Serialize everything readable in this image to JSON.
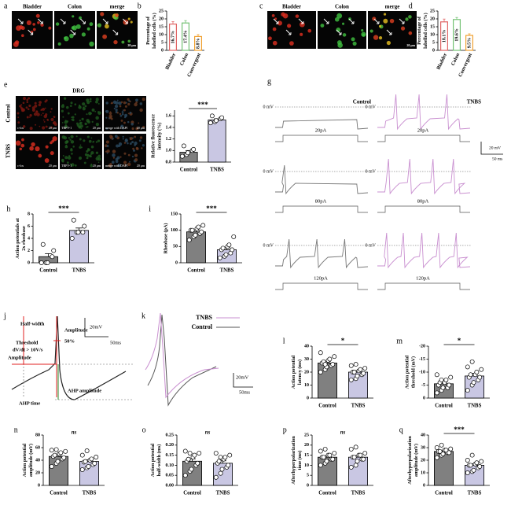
{
  "chart_data": [
    {
      "type": "bar",
      "panel": "b",
      "ylabel": [
        "Percentage of",
        "labelled cells (%)"
      ],
      "categories": [
        "Bladder",
        "Colon",
        "Convergent"
      ],
      "values": [
        16.7,
        17.4,
        8.8
      ],
      "value_labels": [
        "16.7%",
        "17.4%",
        "8.8%"
      ],
      "errors": [
        1.5,
        1.5,
        1.2
      ],
      "colors": [
        "#e06464",
        "#74c274",
        "#f0a030"
      ],
      "style": "outline",
      "ylim": [
        0,
        25
      ],
      "yticks": [
        0,
        5,
        10,
        15,
        20,
        25
      ]
    },
    {
      "type": "bar",
      "panel": "d",
      "ylabel": [
        "Percentage of",
        "labelled cells (%)"
      ],
      "categories": [
        "Bladder",
        "Colon",
        "Convergent"
      ],
      "values": [
        18.1,
        19.6,
        9.5
      ],
      "value_labels": [
        "18.1%",
        "19.6%",
        "9.5%"
      ],
      "errors": [
        1.8,
        1.3,
        1.0
      ],
      "colors": [
        "#e06464",
        "#74c274",
        "#f0a030"
      ],
      "style": "outline",
      "ylim": [
        0,
        25
      ],
      "yticks": [
        0,
        5,
        10,
        15,
        20,
        25
      ]
    },
    {
      "type": "bar",
      "panel": "f",
      "ylabel": [
        "Relative fluorescence",
        "intensity (%)"
      ],
      "categories": [
        "Control",
        "TNBS"
      ],
      "values": [
        0.97,
        1.53
      ],
      "errors": [
        0.03,
        0.02
      ],
      "points": [
        [
          0.9,
          0.93,
          0.96,
          1.0,
          1.02,
          1.08
        ],
        [
          1.48,
          1.5,
          1.52,
          1.55,
          1.57,
          1.6
        ]
      ],
      "colors": [
        "#808080",
        "#c9c7e3"
      ],
      "significance": "***",
      "ylim": [
        0.8,
        1.7
      ],
      "yticks": [
        {
          "value": 0.8,
          "label": "0.8"
        },
        {
          "value": 1.0,
          "label": "1.0"
        },
        {
          "value": 1.2,
          "label": "1.2"
        },
        {
          "value": 1.4,
          "label": "1.4"
        },
        {
          "value": 1.6,
          "label": "1.6"
        }
      ]
    },
    {
      "type": "bar",
      "panel": "h",
      "ylabel": [
        "Action potentials at",
        "2x rheobase"
      ],
      "categories": [
        "Control",
        "TNBS"
      ],
      "values": [
        1.0,
        5.3
      ],
      "errors": [
        0.5,
        0.4
      ],
      "points": [
        [
          0,
          0,
          0,
          1,
          2,
          3
        ],
        [
          4,
          5,
          5,
          5,
          6,
          7
        ]
      ],
      "colors": [
        "#808080",
        "#c9c7e3"
      ],
      "significance": "***",
      "ylim": [
        0,
        8
      ],
      "yticks": [
        0,
        2,
        4,
        6,
        8
      ]
    },
    {
      "type": "bar",
      "panel": "i",
      "ylabel": [
        "Rheobase (pA)"
      ],
      "categories": [
        "Control",
        "TNBS"
      ],
      "values": [
        95,
        40
      ],
      "errors": [
        5,
        6
      ],
      "points": [
        [
          70,
          80,
          85,
          90,
          95,
          100,
          100,
          105,
          110,
          115
        ],
        [
          15,
          20,
          25,
          30,
          40,
          40,
          45,
          50,
          55,
          80
        ]
      ],
      "colors": [
        "#808080",
        "#c9c7e3"
      ],
      "significance": "***",
      "ylim": [
        0,
        150
      ],
      "yticks": [
        0,
        50,
        100,
        150
      ]
    },
    {
      "type": "bar",
      "panel": "l",
      "ylabel": [
        "Action potential",
        "latency (ms)"
      ],
      "categories": [
        "Control",
        "TNBS"
      ],
      "values": [
        27,
        20
      ],
      "errors": [
        1.3,
        1.1
      ],
      "points": [
        [
          20,
          22,
          24,
          25,
          26,
          27,
          28,
          29,
          30,
          32,
          35,
          26
        ],
        [
          14,
          15,
          17,
          18,
          19,
          20,
          20,
          21,
          22,
          23,
          25,
          26
        ]
      ],
      "colors": [
        "#808080",
        "#c9c7e3"
      ],
      "significance": "*",
      "ylim": [
        0,
        40
      ],
      "yticks": [
        0,
        10,
        20,
        30,
        40
      ]
    },
    {
      "type": "bar",
      "panel": "m",
      "ylabel": [
        "Action potential",
        "threshold (mV)"
      ],
      "categories": [
        "Control",
        "TNBS"
      ],
      "values": [
        -5.5,
        -8.5
      ],
      "errors": [
        0.6,
        1.0
      ],
      "points": [
        [
          -2,
          -3,
          -4,
          -4,
          -5,
          -5,
          -6,
          -6,
          -7,
          -8,
          -9,
          -7
        ],
        [
          -3,
          -5,
          -6,
          -7,
          -8,
          -8,
          -9,
          -9,
          -10,
          -11,
          -12,
          -14
        ]
      ],
      "colors": [
        "#808080",
        "#c9c7e3"
      ],
      "significance": "*",
      "ylim": [
        0,
        -20
      ],
      "yticks": [
        0,
        -5,
        -10,
        -15,
        -20
      ]
    },
    {
      "type": "bar",
      "panel": "n",
      "ylabel": [
        "Action potential",
        "amplitude (mV)"
      ],
      "categories": [
        "Control",
        "TNBS"
      ],
      "values": [
        46,
        38
      ],
      "errors": [
        2.5,
        2.6
      ],
      "points": [
        [
          30,
          35,
          38,
          42,
          44,
          46,
          48,
          50,
          52,
          54,
          56,
          57
        ],
        [
          25,
          28,
          30,
          33,
          35,
          37,
          38,
          40,
          42,
          45,
          48,
          55
        ]
      ],
      "colors": [
        "#808080",
        "#c9c7e3"
      ],
      "significance": "ns",
      "ylim": [
        0,
        80
      ],
      "yticks": [
        0,
        20,
        40,
        60,
        80
      ]
    },
    {
      "type": "bar",
      "panel": "o",
      "ylabel": [
        "Action potential",
        "half-width (ms)"
      ],
      "categories": [
        "Control",
        "TNBS"
      ],
      "values": [
        0.12,
        0.11
      ],
      "errors": [
        0.012,
        0.012
      ],
      "points": [
        [
          0.05,
          0.07,
          0.08,
          0.1,
          0.11,
          0.12,
          0.13,
          0.14,
          0.15,
          0.16,
          0.17,
          0.16
        ],
        [
          0.04,
          0.06,
          0.08,
          0.09,
          0.1,
          0.11,
          0.12,
          0.13,
          0.14,
          0.15,
          0.16,
          0.14
        ]
      ],
      "colors": [
        "#808080",
        "#c9c7e3"
      ],
      "significance": "ns",
      "ylim": [
        0,
        0.25
      ],
      "yticks": [
        {
          "value": 0,
          "label": "0.00"
        },
        {
          "value": 0.05,
          "label": "0.05"
        },
        {
          "value": 0.1,
          "label": "0.10"
        },
        {
          "value": 0.15,
          "label": "0.15"
        },
        {
          "value": 0.2,
          "label": "0.20"
        },
        {
          "value": 0.25,
          "label": "0.25"
        }
      ]
    },
    {
      "type": "bar",
      "panel": "p",
      "ylabel": [
        "Afterhyperpolarization",
        "time (ms)"
      ],
      "categories": [
        "Control",
        "TNBS"
      ],
      "values": [
        14,
        14
      ],
      "errors": [
        0.7,
        0.8
      ],
      "points": [
        [
          10,
          11,
          12,
          13,
          13,
          14,
          14,
          15,
          15,
          16,
          17,
          18
        ],
        [
          9,
          10,
          12,
          13,
          13,
          14,
          14,
          15,
          15,
          16,
          18,
          19
        ]
      ],
      "colors": [
        "#808080",
        "#c9c7e3"
      ],
      "significance": "ns",
      "ylim": [
        0,
        25
      ],
      "yticks": [
        0,
        5,
        10,
        15,
        20,
        25
      ]
    },
    {
      "type": "bar",
      "panel": "q",
      "ylabel": [
        "Afterhyperpolarization",
        "amplitude (mV)"
      ],
      "categories": [
        "Control",
        "TNBS"
      ],
      "values": [
        27,
        16
      ],
      "errors": [
        0.8,
        1.2
      ],
      "points": [
        [
          22,
          24,
          25,
          26,
          26,
          27,
          27,
          28,
          28,
          29,
          30,
          32
        ],
        [
          10,
          11,
          12,
          14,
          15,
          16,
          16,
          17,
          18,
          19,
          20,
          24
        ]
      ],
      "colors": [
        "#808080",
        "#c9c7e3"
      ],
      "significance": "***",
      "ylim": [
        0,
        40
      ],
      "yticks": [
        0,
        10,
        20,
        30,
        40
      ]
    }
  ],
  "image_panels": [
    {
      "panel": "a",
      "labels": [
        "Bladder",
        "Colon",
        "merge"
      ],
      "scale": "20 μm"
    },
    {
      "panel": "c",
      "labels": [
        "Bladder",
        "Colon",
        "merge"
      ],
      "scale": "20 μm"
    },
    {
      "panel": "e",
      "title": "DRG",
      "rows": [
        "Control",
        "TNBS"
      ],
      "captions": [
        "c-fos",
        "TRPV-1",
        "merge with DAPI"
      ],
      "scale": "20 μm"
    }
  ],
  "traces": {
    "panel": "g",
    "conditions": [
      "Control",
      "TNBS"
    ],
    "zero": "0 mV",
    "steps": [
      "20pA",
      "80pA",
      "120pA"
    ],
    "scale_y": "20 mV",
    "scale_x": "50 ms"
  },
  "schematic": {
    "panel": "j",
    "labels": {
      "half_width": "Half-width",
      "amplitude_top": "Amplitude",
      "percent": "50%",
      "threshold": "Threshold",
      "threshold_rule": "dV/dt > 10V/s",
      "amplitude_left": "Amplitude",
      "ahp_amplitude": "AHP amplitude",
      "ahp_time": "AHP time"
    },
    "scale_y": "20mV",
    "scale_x": "50ms"
  },
  "overlay": {
    "panel": "k",
    "legend": [
      {
        "name": "TNBS",
        "color": "#c98fd0"
      },
      {
        "name": "Control",
        "color": "#555555"
      }
    ],
    "scale_y": "20mV",
    "scale_x": "50ms"
  }
}
